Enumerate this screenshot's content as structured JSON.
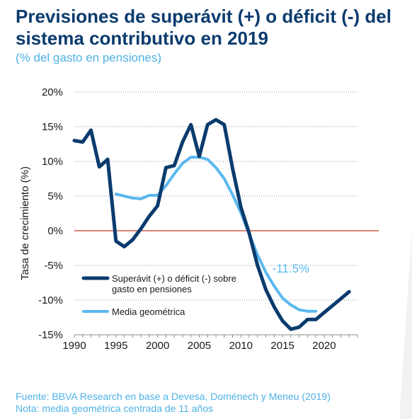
{
  "title": "Previsiones de superávit (+) o déficit (-) del\nsistema contributivo en 2019",
  "subtitle": "(% del gasto en pensiones)",
  "footnotes": {
    "source": "Fuente: BBVA Research en base a Devesa, Doménech y Meneu (2019)",
    "note": "Nota: media geométrica centrada de 11 años"
  },
  "colors": {
    "title": "#0b3b6e",
    "series_dark": "#0b3b6e",
    "series_light": "#5ab8ef",
    "zero_line": "#c0392b",
    "accent_text": "#4fb2e6"
  },
  "chart_data": {
    "type": "line",
    "ylabel": "Tasa de crecimiento (%)",
    "xlabel": "",
    "xlim": [
      1990,
      2024
    ],
    "ylim": [
      -15,
      20
    ],
    "x_ticks": [
      1990,
      1995,
      2000,
      2005,
      2010,
      2015,
      2020
    ],
    "y_ticks": [
      {
        "value": 20,
        "label": "20%"
      },
      {
        "value": 15,
        "label": "15%"
      },
      {
        "value": 10,
        "label": "10%"
      },
      {
        "value": 5,
        "label": "5%"
      },
      {
        "value": 0,
        "label": "0%"
      },
      {
        "value": -5,
        "label": "-5%"
      },
      {
        "value": -10,
        "label": "-10%"
      },
      {
        "value": -15,
        "label": "-15%"
      }
    ],
    "grid": "horizontal dotted",
    "legend_position": "bottom-left",
    "series": [
      {
        "name": "Superávit (+) o déficit (-) sobre gasto en pensiones",
        "color": "#0b3b6e",
        "x": [
          1990,
          1991,
          1992,
          1993,
          1994,
          1995,
          1996,
          1997,
          1998,
          1999,
          2000,
          2001,
          2002,
          2003,
          2004,
          2005,
          2006,
          2007,
          2008,
          2009,
          2010,
          2011,
          2012,
          2013,
          2014,
          2015,
          2016,
          2017,
          2018,
          2019,
          2020,
          2021,
          2022,
          2023
        ],
        "values": [
          13.0,
          12.8,
          14.5,
          9.2,
          10.3,
          -1.5,
          -2.3,
          -1.3,
          0.3,
          2.1,
          3.6,
          9.1,
          9.4,
          12.8,
          15.3,
          10.7,
          15.3,
          16.0,
          15.3,
          9.0,
          3.4,
          -0.4,
          -5.0,
          -8.5,
          -11.0,
          -13.0,
          -14.2,
          -13.9,
          -12.8,
          -12.8,
          -11.8,
          -10.8,
          -9.8,
          -8.8
        ]
      },
      {
        "name": "Media geométrica",
        "color": "#5ab8ef",
        "x": [
          1995,
          1996,
          1997,
          1998,
          1999,
          2000,
          2001,
          2002,
          2003,
          2004,
          2005,
          2006,
          2007,
          2008,
          2009,
          2010,
          2011,
          2012,
          2013,
          2014,
          2015,
          2016,
          2017,
          2018,
          2019
        ],
        "values": [
          5.3,
          5.0,
          4.7,
          4.6,
          5.1,
          5.1,
          6.5,
          8.2,
          9.7,
          10.6,
          10.6,
          10.3,
          9.1,
          7.5,
          5.2,
          2.6,
          -0.5,
          -3.5,
          -6.0,
          -8.0,
          -9.7,
          -10.7,
          -11.4,
          -11.6,
          -11.6
        ]
      }
    ],
    "annotations": [
      {
        "text": "-11.5%",
        "x": 2016,
        "y": -6.0,
        "color": "#5ab8ef"
      }
    ]
  }
}
